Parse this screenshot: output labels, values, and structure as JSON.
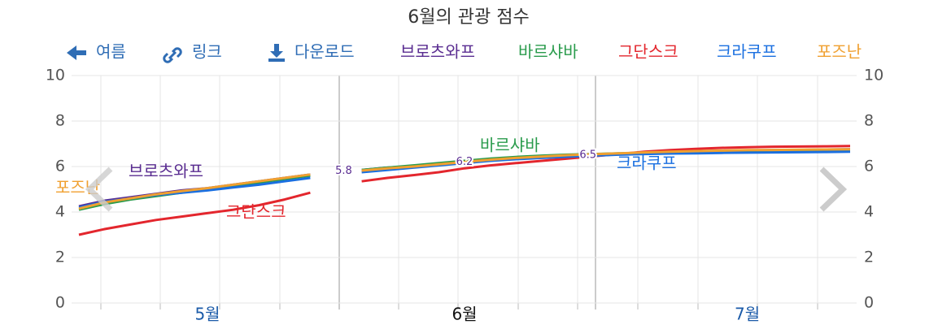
{
  "chart_data": {
    "type": "line",
    "title": "6월의 관광 점수",
    "toolbar": {
      "back": "여름",
      "link": "링크",
      "download": "다운로드"
    },
    "categories": [
      null,
      null,
      null,
      null,
      null,
      "5월",
      null,
      null,
      null,
      null,
      null,
      null,
      null,
      null,
      null,
      "6월",
      null,
      null,
      null,
      null,
      null,
      null,
      null,
      null,
      null,
      null,
      "7월",
      null,
      null,
      null,
      null
    ],
    "series": [
      {
        "name": "브로츠와프",
        "color": "#5a2d91",
        "values": [
          4.25,
          4.5,
          4.65,
          4.8,
          4.95,
          5.05,
          5.2,
          5.35,
          5.5,
          5.65,
          null,
          5.85,
          5.95,
          6.02,
          6.1,
          6.2,
          6.28,
          6.35,
          6.4,
          6.45,
          6.5,
          6.55,
          6.58,
          6.62,
          6.65,
          6.68,
          6.7,
          6.72,
          6.73,
          6.75,
          6.76
        ]
      },
      {
        "name": "바르샤바",
        "color": "#2a9b4c",
        "values": [
          4.1,
          4.35,
          4.55,
          4.7,
          4.85,
          5.0,
          5.15,
          5.3,
          5.45,
          5.6,
          null,
          5.85,
          5.95,
          6.05,
          6.15,
          6.25,
          6.35,
          6.42,
          6.48,
          6.52,
          6.55,
          6.58,
          6.6,
          6.62,
          6.64,
          6.66,
          6.68,
          6.7,
          6.72,
          6.73,
          6.74
        ]
      },
      {
        "name": "그단스크",
        "color": "#e3262d",
        "values": [
          3.0,
          3.25,
          3.45,
          3.65,
          3.8,
          3.95,
          4.1,
          4.3,
          4.55,
          4.85,
          null,
          5.35,
          5.5,
          5.62,
          5.75,
          5.92,
          6.05,
          6.15,
          6.25,
          6.35,
          6.45,
          6.55,
          6.65,
          6.72,
          6.78,
          6.82,
          6.85,
          6.87,
          6.88,
          6.89,
          6.9
        ]
      },
      {
        "name": "크라쿠프",
        "color": "#1a6fe0",
        "values": [
          4.2,
          4.45,
          4.6,
          4.75,
          4.85,
          4.95,
          5.08,
          5.2,
          5.35,
          5.5,
          null,
          5.75,
          5.85,
          5.95,
          6.05,
          6.15,
          6.25,
          6.32,
          6.38,
          6.43,
          6.48,
          6.52,
          6.55,
          6.57,
          6.58,
          6.6,
          6.61,
          6.62,
          6.63,
          6.64,
          6.65
        ]
      },
      {
        "name": "포즈난",
        "color": "#f0a030",
        "values": [
          4.15,
          4.42,
          4.6,
          4.78,
          4.92,
          5.05,
          5.2,
          5.35,
          5.5,
          5.65,
          null,
          5.82,
          5.92,
          6.0,
          6.1,
          6.2,
          6.3,
          6.38,
          6.44,
          6.5,
          6.54,
          6.58,
          6.62,
          6.65,
          6.68,
          6.7,
          6.72,
          6.73,
          6.74,
          6.75,
          6.76
        ]
      }
    ],
    "annotations": [
      5.8,
      6.2,
      6.5
    ],
    "ylim": [
      0,
      10
    ],
    "yticks": [
      0,
      2,
      4,
      6,
      8,
      10
    ],
    "grid": true
  }
}
